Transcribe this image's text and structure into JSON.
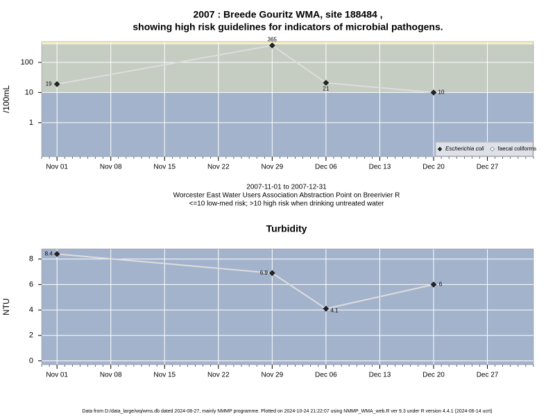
{
  "chart_data": [
    {
      "type": "line",
      "title": "2007 : Breede Gouritz WMA, site 188484 ,",
      "subtitle": "showing high risk guidelines for indicators of microbial pathogens.",
      "y_label": "/100mL",
      "log_scale": true,
      "grid": true,
      "legend": "bottom-right",
      "x": [
        "Nov 01",
        "Nov 29",
        "Dec 06",
        "Dec 20"
      ],
      "series": [
        {
          "name": "Escherichia coli",
          "color": "#222222",
          "line_color": "#dddddd",
          "values": [
            19,
            365,
            21,
            10
          ]
        },
        {
          "name": "faecal coliforms",
          "color": "#ffffff",
          "line_color": "#dddddd",
          "values": [
            null,
            null,
            null,
            null
          ]
        }
      ],
      "xlim": [
        "Oct 30",
        "Jan 02"
      ],
      "xticks": [
        "Nov 01",
        "Nov 08",
        "Nov 15",
        "Nov 22",
        "Nov 29",
        "Dec 06",
        "Dec 13",
        "Dec 20",
        "Dec 27"
      ],
      "ylim": [
        0.074,
        490
      ],
      "yticks": [
        1,
        10,
        100
      ],
      "bands": [
        {
          "from": 0.074,
          "to": 10,
          "color": "#a3b3cc"
        },
        {
          "from": 10,
          "to": 400,
          "color": "#c5ccc2"
        },
        {
          "from": 400,
          "to": 490,
          "color": "#f3f0c6"
        }
      ],
      "annotations": [
        "2007-11-01 to 2007-12-31",
        "Worcester East Water Users Association Abstraction Point on Breerivier R",
        "<=10 low-med risk; >10 high risk when drinking untreated water"
      ]
    },
    {
      "type": "line",
      "title": "Turbidity",
      "y_label": "NTU",
      "log_scale": false,
      "grid": true,
      "x": [
        "Nov 01",
        "Nov 29",
        "Dec 06",
        "Dec 20"
      ],
      "series": [
        {
          "name": "Turbidity",
          "color": "#222222",
          "line_color": "#dddddd",
          "values": [
            8.4,
            6.9,
            4.1,
            6
          ]
        }
      ],
      "xlim": [
        "Oct 30",
        "Jan 02"
      ],
      "xticks": [
        "Nov 01",
        "Nov 08",
        "Nov 15",
        "Nov 22",
        "Nov 29",
        "Dec 06",
        "Dec 13",
        "Dec 20",
        "Dec 27"
      ],
      "ylim": [
        -0.3,
        8.8
      ],
      "yticks": [
        0,
        2,
        4,
        6,
        8
      ],
      "bands": [
        {
          "from": -0.3,
          "to": 8.8,
          "color": "#a3b3cc"
        }
      ]
    }
  ],
  "footer": "Data from D:/data_large/wq/wms.db dated 2024-08-27, mainly NMMP programme. Plotted on 2024-10-24 21:22:07 using NMMP_WMA_web.R ver 9.3 under R version 4.4.1 (2024-06-14 ucrt)"
}
